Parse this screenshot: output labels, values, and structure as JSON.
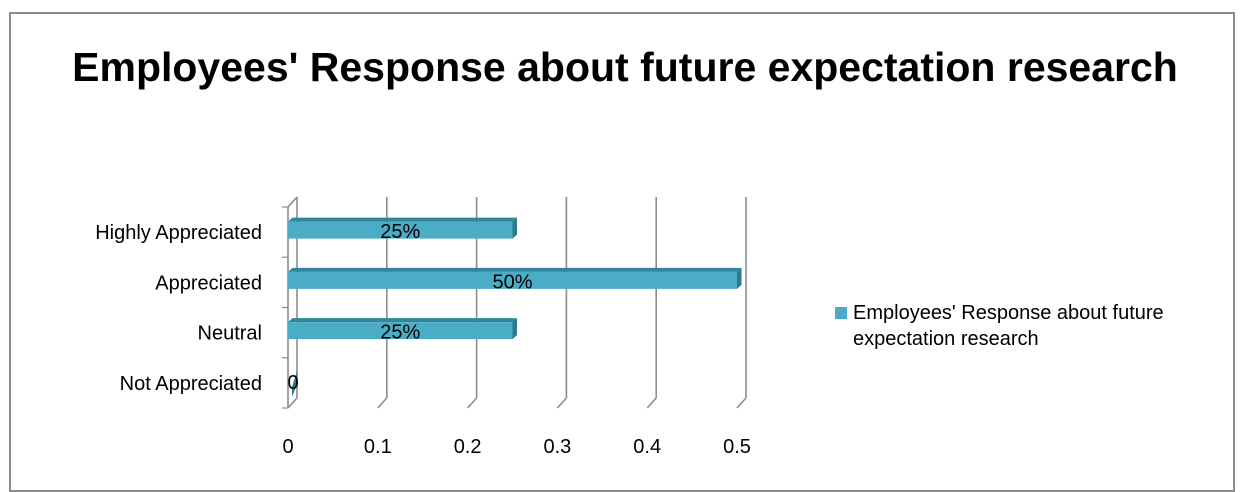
{
  "chart_data": {
    "type": "bar",
    "orientation": "horizontal",
    "title": "Employees' Response about future expectation research",
    "categories": [
      "Highly Appreciated",
      "Appreciated",
      "Neutral",
      "Not Appreciated"
    ],
    "series": [
      {
        "name": "Employees' Response about future expectation research",
        "values": [
          0.25,
          0.5,
          0.25,
          0
        ],
        "data_labels": [
          "25%",
          "50%",
          "25%",
          "0"
        ]
      }
    ],
    "x_ticks": [
      "0",
      "0.1",
      "0.2",
      "0.3",
      "0.4",
      "0.5"
    ],
    "xlim": [
      0,
      0.5
    ],
    "xlabel": "",
    "ylabel": "",
    "grid": "vertical",
    "legend_position": "right",
    "style": "3d",
    "colors": {
      "bar": "#4BACC6",
      "bar_dark": "#31859C",
      "bar_side": "#2C7A90",
      "grid": "#8C8C8C"
    }
  }
}
